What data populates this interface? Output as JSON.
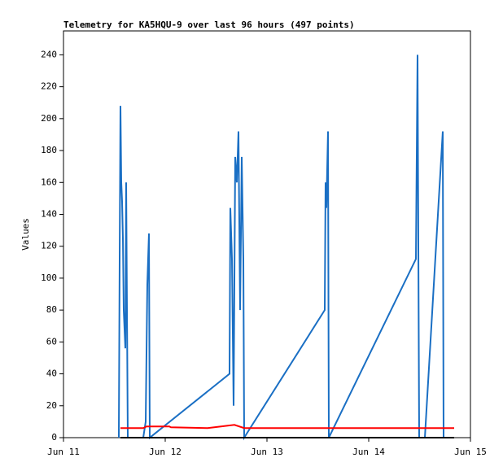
{
  "chart_data": {
    "type": "line",
    "title": "Telemetry for KA5HQU-9 over last 96 hours (497 points)",
    "y_label": "Values",
    "xlim": [
      11,
      15
    ],
    "xticks": [
      {
        "value": 11,
        "label": "Jun 11"
      },
      {
        "value": 12,
        "label": "Jun 12"
      },
      {
        "value": 13,
        "label": "Jun 13"
      },
      {
        "value": 14,
        "label": "Jun 14"
      },
      {
        "value": 15,
        "label": "Jun 15"
      }
    ],
    "ylim": [
      0,
      255
    ],
    "yticks": [
      0,
      20,
      40,
      60,
      80,
      100,
      120,
      140,
      160,
      180,
      200,
      220,
      240
    ],
    "series": [
      {
        "color": "#000000",
        "x": [
          11.56,
          14.84
        ],
        "values": [
          0,
          0
        ]
      },
      {
        "color": "#ff0000",
        "x": [
          11.56,
          11.784,
          11.816,
          12.04,
          12.056,
          12.416,
          12.68,
          12.776,
          14.84
        ],
        "values": [
          6,
          6,
          7,
          7,
          6.5,
          6,
          8,
          6,
          6
        ]
      },
      {
        "color": "#1a6fc4",
        "x": [
          11.544,
          11.552,
          11.56,
          11.568,
          11.576,
          11.584,
          11.592,
          11.608,
          11.616,
          11.624,
          11.632,
          11.784,
          11.808,
          11.824,
          11.84,
          11.848,
          12.632,
          12.64,
          12.656,
          12.672,
          12.688,
          12.704,
          12.72,
          12.736,
          12.752,
          12.768,
          12.776,
          13.568,
          13.576,
          13.584,
          13.6,
          13.608,
          14.464,
          14.48,
          14.496,
          14.552,
          14.728,
          14.736
        ],
        "values": [
          0,
          112,
          208,
          160,
          148,
          125,
          80,
          56,
          160,
          80,
          0,
          0,
          10,
          96,
          128,
          0,
          40,
          144,
          112,
          20,
          176,
          160,
          192,
          80,
          176,
          112,
          0,
          80,
          160,
          144,
          192,
          0,
          112,
          240,
          0,
          0,
          192,
          0
        ]
      }
    ]
  }
}
